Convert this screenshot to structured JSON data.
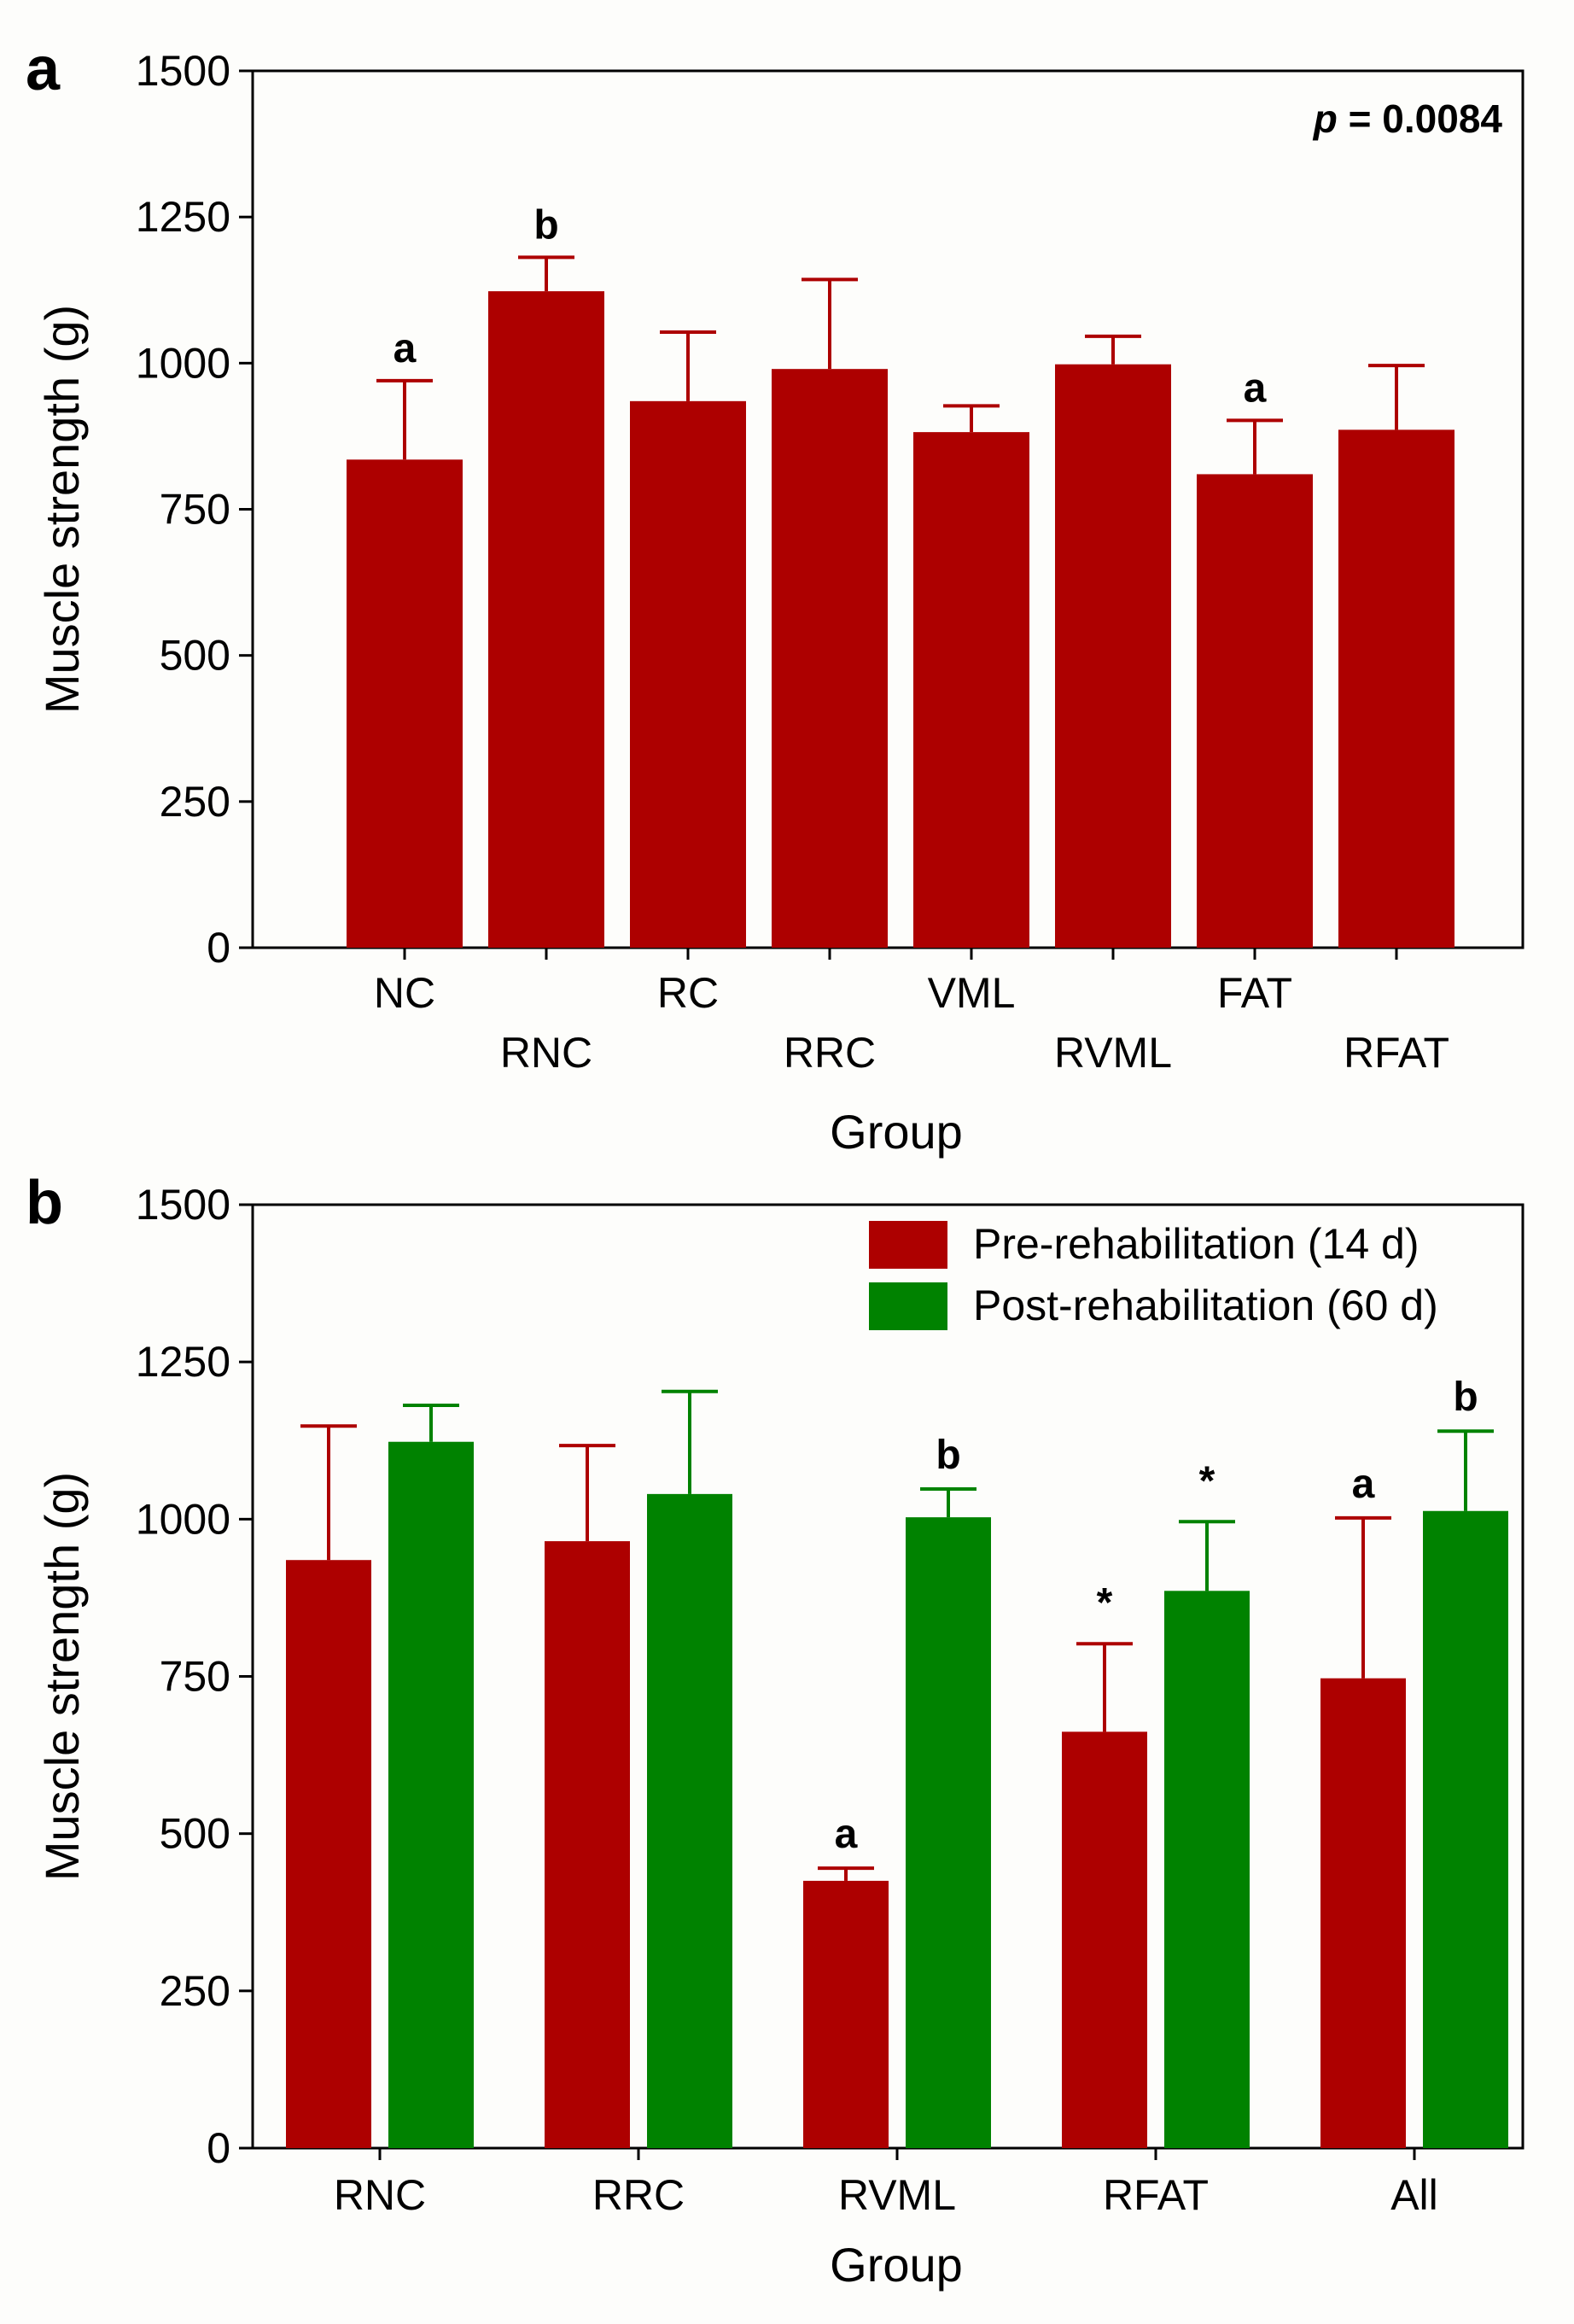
{
  "colors": {
    "pre": "#ad0000",
    "post": "#008200",
    "axis": "#000000"
  },
  "chart_data": [
    {
      "type": "bar",
      "panel_label": "a",
      "title": "",
      "xlabel": "Group",
      "ylabel": "Muscle strength (g)",
      "ylim": [
        0,
        1500
      ],
      "yticks": [
        "0",
        "250",
        "500",
        "750",
        "1000",
        "1250",
        "1500"
      ],
      "annotation": {
        "italic": "p",
        "text": " = 0.0084"
      },
      "categories": [
        "NC",
        "RNC",
        "RC",
        "RRC",
        "VML",
        "RVML",
        "FAT",
        "RFAT"
      ],
      "values": [
        835,
        1123,
        935,
        990,
        882,
        998,
        810,
        886
      ],
      "errors": [
        135,
        58,
        118,
        153,
        45,
        48,
        92,
        110
      ],
      "labels": [
        "a",
        "b",
        "",
        "",
        "",
        "",
        "a",
        ""
      ]
    },
    {
      "type": "bar",
      "panel_label": "b",
      "title": "",
      "xlabel": "Group",
      "ylabel": "Muscle strength (g)",
      "ylim": [
        0,
        1500
      ],
      "yticks": [
        "0",
        "250",
        "500",
        "750",
        "1000",
        "1250",
        "1500"
      ],
      "legend_position": "top-right",
      "categories": [
        "RNC",
        "RRC",
        "RVML",
        "RFAT",
        "All"
      ],
      "series": [
        {
          "name": "Pre-rehabilitation (14 d)",
          "values": [
            935,
            965,
            425,
            662,
            747
          ],
          "errors": [
            213,
            152,
            20,
            140,
            255
          ],
          "labels": [
            "",
            "",
            "a",
            "*",
            "a"
          ]
        },
        {
          "name": "Post-rehabilitation (60 d)",
          "values": [
            1123,
            1040,
            1003,
            886,
            1013
          ],
          "errors": [
            58,
            163,
            45,
            110,
            127
          ],
          "labels": [
            "",
            "",
            "b",
            "*",
            "b"
          ]
        }
      ]
    }
  ]
}
